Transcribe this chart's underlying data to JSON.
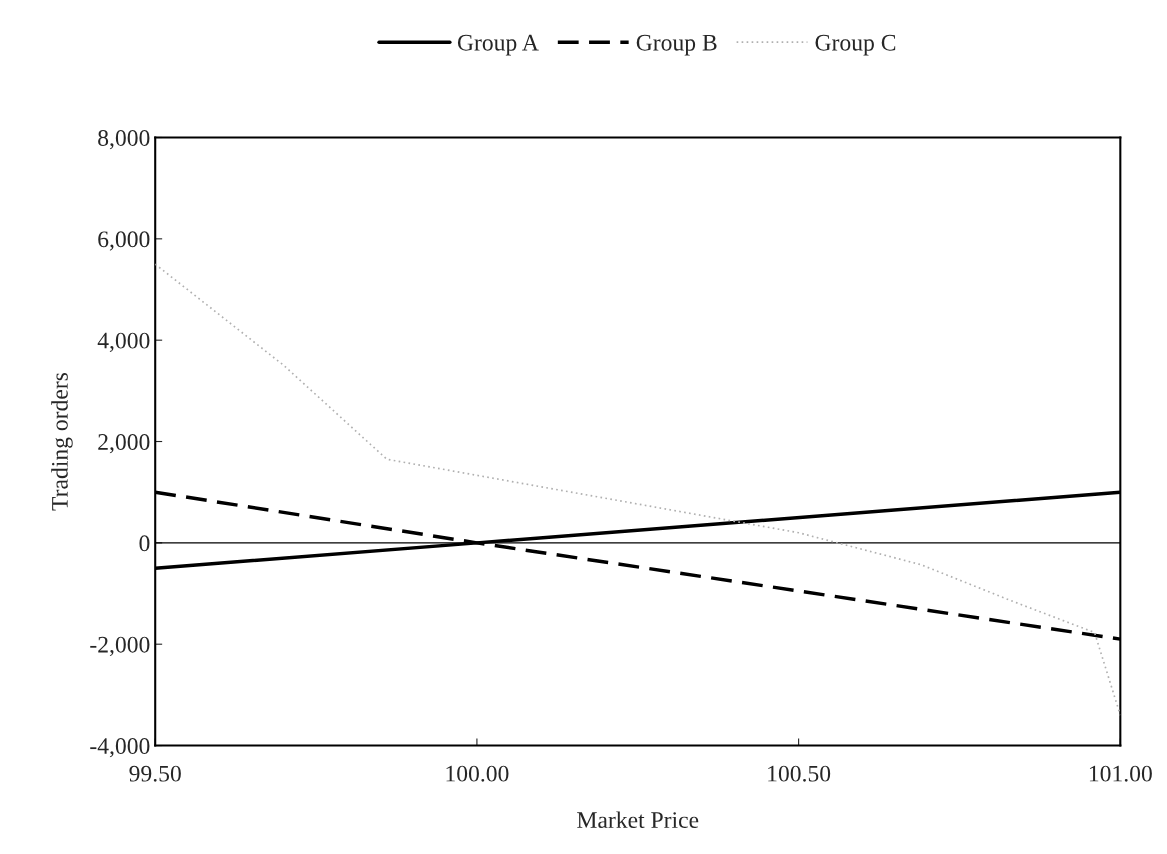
{
  "chart_data": {
    "type": "line",
    "xlabel": "Market Price",
    "ylabel": "Trading orders",
    "xlim": [
      99.5,
      101.0
    ],
    "ylim": [
      -4000,
      8000
    ],
    "xticks": [
      {
        "value": 99.5,
        "label": "99.50"
      },
      {
        "value": 100.0,
        "label": "100.00"
      },
      {
        "value": 100.5,
        "label": "100.50"
      },
      {
        "value": 101.0,
        "label": "101.00"
      }
    ],
    "yticks": [
      {
        "value": -4000,
        "label": "-4,000"
      },
      {
        "value": -2000,
        "label": "-2,000"
      },
      {
        "value": 0,
        "label": "0"
      },
      {
        "value": 2000,
        "label": "2,000"
      },
      {
        "value": 4000,
        "label": "4,000"
      },
      {
        "value": 6000,
        "label": "6,000"
      },
      {
        "value": 8000,
        "label": "8,000"
      }
    ],
    "grid": false,
    "legend": "top",
    "marker": "none",
    "ref_lines": [
      {
        "axis": "y",
        "value": 0,
        "color": "#000000",
        "line_style": "solid"
      }
    ],
    "series": [
      {
        "name": "Group A",
        "color": "#000000",
        "line_style": "solid",
        "x": [
          99.5,
          100.0,
          101.0
        ],
        "values": [
          -500,
          0,
          1000
        ]
      },
      {
        "name": "Group B",
        "color": "#000000",
        "line_style": "dashed",
        "x": [
          99.5,
          100.0,
          101.0
        ],
        "values": [
          1000,
          0,
          -1900
        ]
      },
      {
        "name": "Group C",
        "color": "#b0b0b0",
        "line_style": "dotted",
        "x": [
          99.5,
          99.7,
          99.86,
          100.5,
          100.69,
          100.83,
          100.96,
          101.0
        ],
        "values": [
          5500,
          3500,
          1650,
          200,
          -430,
          -1140,
          -1770,
          -3400
        ]
      }
    ]
  }
}
